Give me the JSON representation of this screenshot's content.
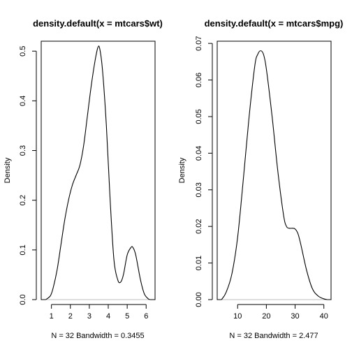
{
  "chart_data": [
    {
      "type": "line",
      "title": "density.default(x = mtcars$wt)",
      "xlabel": "N = 32   Bandwidth = 0.3455",
      "ylabel": "Density",
      "xlim": [
        0.46,
        6.47
      ],
      "ylim": [
        0,
        0.52
      ],
      "xticks": [
        1,
        2,
        3,
        4,
        5,
        6
      ],
      "yticks": [
        0,
        0.1,
        0.2,
        0.3,
        0.4,
        0.5
      ],
      "ytick_labels": [
        "0.0",
        "0.1",
        "0.2",
        "0.3",
        "0.4",
        "0.5"
      ],
      "baseline": 0,
      "baseline_color": "#bebebe",
      "line_color": "#000000",
      "grid": false,
      "series": [
        {
          "x": [
            0.7,
            0.95,
            1.1,
            1.3,
            1.5,
            1.7,
            1.9,
            2.1,
            2.3,
            2.5,
            2.7,
            2.9,
            3.1,
            3.3,
            3.45,
            3.55,
            3.7,
            3.9,
            4.1,
            4.3,
            4.5,
            4.65,
            4.8,
            5.0,
            5.2,
            5.3,
            5.45,
            5.7,
            5.9,
            6.1,
            6.21
          ],
          "y": [
            0.0,
            0.008,
            0.025,
            0.06,
            0.11,
            0.16,
            0.2,
            0.23,
            0.25,
            0.27,
            0.31,
            0.37,
            0.43,
            0.48,
            0.507,
            0.505,
            0.46,
            0.35,
            0.2,
            0.08,
            0.04,
            0.035,
            0.05,
            0.09,
            0.105,
            0.105,
            0.09,
            0.04,
            0.012,
            0.002,
            0.0
          ]
        }
      ]
    },
    {
      "type": "line",
      "title": "density.default(x = mtcars$mpg)",
      "xlabel": "N = 32   Bandwidth = 2.477",
      "ylabel": "Density",
      "xlim": [
        2.9,
        42.5
      ],
      "ylim": [
        0,
        0.0706
      ],
      "xticks": [
        10,
        20,
        30,
        40
      ],
      "yticks": [
        0,
        0.01,
        0.02,
        0.03,
        0.04,
        0.05,
        0.06,
        0.07
      ],
      "ytick_labels": [
        "0.00",
        "0.01",
        "0.02",
        "0.03",
        "0.04",
        "0.05",
        "0.06",
        "0.07"
      ],
      "baseline": 0,
      "baseline_color": "#bebebe",
      "line_color": "#000000",
      "grid": false,
      "series": [
        {
          "x": [
            4.4,
            6,
            8,
            10,
            12,
            14,
            16,
            17,
            18,
            19,
            20,
            22,
            24,
            26,
            27,
            28,
            29,
            30,
            31,
            32,
            34,
            36,
            38,
            40,
            41.3
          ],
          "y": [
            0.0,
            0.002,
            0.007,
            0.017,
            0.033,
            0.05,
            0.064,
            0.067,
            0.068,
            0.067,
            0.063,
            0.05,
            0.035,
            0.023,
            0.02,
            0.0195,
            0.0195,
            0.0193,
            0.018,
            0.015,
            0.008,
            0.003,
            0.001,
            0.0002,
            0.0
          ]
        }
      ]
    }
  ]
}
